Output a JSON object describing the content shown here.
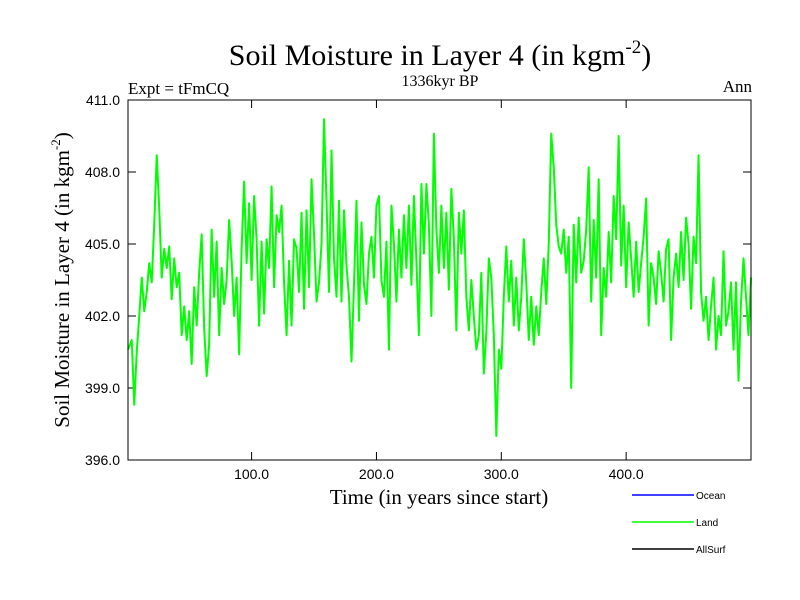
{
  "chart_data": {
    "type": "line",
    "title": "Soil Moisture in Layer 4 (in kgm",
    "title_sup": "-2",
    "title_close": ")",
    "subtitle": "1336kyr BP",
    "left_label": "Expt = tFmCQ",
    "right_label": "Ann",
    "xlabel": "Time (in years since start)",
    "ylabel": "Soil Moisture in Layer 4 (in kgm",
    "ylabel_sup": "-2",
    "ylabel_close": ")",
    "xlim": [
      1,
      500
    ],
    "ylim": [
      396.0,
      411.0
    ],
    "xticks": [
      100,
      200,
      300,
      400
    ],
    "xtick_labels": [
      "100.0",
      "200.0",
      "300.0",
      "400.0"
    ],
    "yticks": [
      396,
      399,
      402,
      405,
      408,
      411
    ],
    "ytick_labels": [
      "396.0",
      "399.0",
      "402.0",
      "405.0",
      "408.0",
      "411.0"
    ],
    "legend": [
      {
        "name": "Ocean",
        "color": "#0000ff"
      },
      {
        "name": "Land",
        "color": "#00ff00"
      },
      {
        "name": "AllSurf",
        "color": "#000000"
      }
    ],
    "series": [
      {
        "name": "Land",
        "color": "#00ff00",
        "x": [
          1,
          4,
          6,
          8,
          10,
          12,
          14,
          16,
          18,
          20,
          22,
          24,
          26,
          28,
          30,
          32,
          34,
          36,
          38,
          40,
          42,
          44,
          46,
          48,
          50,
          52,
          54,
          56,
          58,
          60,
          62,
          64,
          66,
          68,
          70,
          72,
          74,
          76,
          78,
          80,
          82,
          84,
          86,
          88,
          90,
          92,
          94,
          96,
          98,
          100,
          102,
          104,
          106,
          108,
          110,
          112,
          114,
          116,
          118,
          120,
          122,
          124,
          126,
          128,
          130,
          132,
          134,
          136,
          138,
          140,
          142,
          144,
          146,
          148,
          150,
          152,
          154,
          156,
          158,
          160,
          162,
          164,
          166,
          168,
          170,
          172,
          174,
          176,
          178,
          180,
          182,
          184,
          186,
          188,
          190,
          192,
          194,
          196,
          198,
          200,
          202,
          204,
          206,
          208,
          210,
          212,
          214,
          216,
          218,
          220,
          222,
          224,
          226,
          228,
          230,
          232,
          234,
          236,
          238,
          240,
          242,
          244,
          246,
          248,
          250,
          252,
          254,
          256,
          258,
          260,
          262,
          264,
          266,
          268,
          270,
          272,
          274,
          276,
          278,
          280,
          282,
          284,
          286,
          288,
          290,
          292,
          294,
          296,
          298,
          300,
          302,
          304,
          306,
          308,
          310,
          312,
          314,
          316,
          318,
          320,
          322,
          324,
          326,
          328,
          330,
          332,
          334,
          336,
          338,
          340,
          342,
          344,
          346,
          348,
          350,
          352,
          354,
          356,
          358,
          360,
          362,
          364,
          366,
          368,
          370,
          372,
          374,
          376,
          378,
          380,
          382,
          384,
          386,
          388,
          390,
          392,
          394,
          396,
          398,
          400,
          402,
          404,
          406,
          408,
          410,
          412,
          414,
          416,
          418,
          420,
          422,
          424,
          426,
          428,
          430,
          432,
          434,
          436,
          438,
          440,
          442,
          444,
          446,
          448,
          450,
          452,
          454,
          456,
          458,
          460,
          462,
          464,
          466,
          468,
          470,
          472,
          474,
          476,
          478,
          480,
          482,
          484,
          486,
          488,
          490,
          492,
          494,
          496,
          498,
          500
        ],
        "values": [
          400.6,
          401.0,
          398.3,
          400.5,
          402.0,
          403.6,
          402.2,
          403.0,
          404.2,
          403.4,
          405.8,
          408.7,
          406.5,
          403.6,
          404.8,
          404.0,
          404.9,
          402.7,
          404.4,
          403.2,
          403.8,
          401.2,
          402.4,
          401.0,
          402.2,
          400.0,
          403.2,
          401.6,
          403.8,
          405.4,
          401.5,
          399.5,
          400.8,
          405.6,
          402.8,
          405.1,
          401.2,
          404.0,
          402.5,
          403.5,
          406.0,
          404.3,
          402.0,
          403.6,
          400.4,
          404.8,
          407.6,
          404.2,
          406.7,
          403.5,
          407.0,
          405.2,
          401.6,
          405.1,
          402.1,
          405.2,
          404.0,
          407.4,
          403.2,
          406.2,
          405.5,
          406.6,
          403.4,
          401.2,
          404.3,
          401.6,
          405.2,
          404.8,
          403.0,
          406.3,
          402.3,
          406.4,
          403.2,
          407.7,
          405.4,
          402.6,
          403.4,
          405.0,
          410.2,
          406.8,
          403.0,
          408.9,
          404.4,
          402.8,
          406.8,
          402.6,
          406.4,
          404.1,
          402.8,
          400.1,
          403.3,
          406.8,
          401.8,
          405.9,
          403.3,
          402.5,
          404.6,
          405.3,
          403.6,
          406.6,
          407.0,
          403.5,
          402.8,
          405.1,
          400.6,
          406.6,
          405.0,
          402.6,
          405.6,
          403.6,
          406.2,
          404.0,
          406.6,
          403.3,
          407.0,
          404.3,
          401.2,
          407.5,
          404.6,
          407.5,
          405.8,
          402.0,
          409.6,
          405.6,
          403.8,
          406.6,
          404.0,
          406.3,
          403.1,
          407.3,
          405.2,
          401.4,
          406.3,
          404.6,
          406.4,
          402.8,
          401.4,
          403.5,
          402.0,
          400.6,
          401.2,
          403.8,
          399.6,
          401.3,
          404.4,
          403.6,
          401.2,
          397.0,
          400.6,
          399.8,
          402.8,
          404.9,
          402.6,
          404.3,
          401.6,
          403.6,
          401.4,
          402.8,
          405.2,
          403.4,
          401.0,
          402.8,
          400.8,
          402.4,
          401.2,
          403.0,
          404.4,
          402.5,
          405.0,
          409.6,
          408.2,
          405.8,
          404.9,
          404.6,
          405.6,
          403.8,
          405.3,
          399.0,
          405.8,
          403.4,
          406.1,
          403.8,
          404.3,
          405.6,
          408.2,
          402.6,
          406.0,
          403.6,
          407.7,
          401.2,
          404.0,
          402.8,
          405.5,
          403.4,
          407.0,
          405.2,
          409.5,
          404.1,
          406.6,
          403.2,
          405.9,
          404.4,
          402.8,
          405.1,
          403.0,
          404.2,
          405.3,
          406.9,
          401.6,
          404.2,
          403.6,
          402.5,
          404.7,
          403.8,
          402.6,
          404.8,
          405.2,
          401.0,
          403.6,
          404.6,
          403.2,
          405.5,
          403.5,
          406.1,
          405.0,
          402.3,
          405.3,
          404.2,
          408.7,
          403.0,
          401.8,
          402.8,
          401.0,
          402.4,
          403.6,
          400.6,
          402.0,
          401.2,
          404.7,
          401.6,
          402.2,
          403.4,
          400.6,
          403.4,
          399.3,
          402.6,
          404.4,
          402.8,
          401.2,
          403.6
        ]
      }
    ]
  }
}
